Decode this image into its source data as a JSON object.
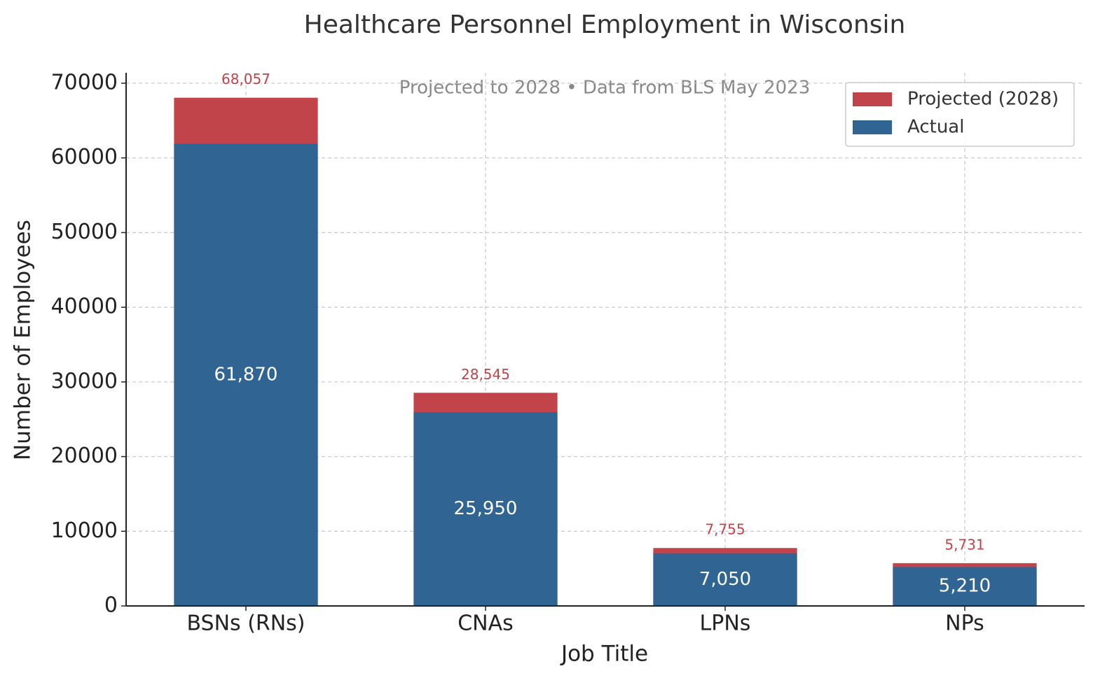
{
  "chart_data": {
    "type": "bar",
    "title": "Healthcare Personnel Employment in Wisconsin",
    "subtitle": "Projected to 2028 • Data from BLS May 2023",
    "xlabel": "Job Title",
    "ylabel": "Number of Employees",
    "categories": [
      "BSNs (RNs)",
      "CNAs",
      "LPNs",
      "NPs"
    ],
    "series": [
      {
        "name": "Projected (2028)",
        "color": "#c0444a",
        "values": [
          68057,
          28545,
          7755,
          5731
        ],
        "value_labels": [
          "68,057",
          "28,545",
          "7,755",
          "5,731"
        ]
      },
      {
        "name": "Actual",
        "color": "#306493",
        "values": [
          61870,
          25950,
          7050,
          5210
        ],
        "value_labels": [
          "61,870",
          "25,950",
          "7,050",
          "5,210"
        ]
      }
    ],
    "ylim": [
      0,
      71400
    ],
    "yticks": [
      0,
      10000,
      20000,
      30000,
      40000,
      50000,
      60000,
      70000
    ],
    "grid": true,
    "legend": "upper right"
  }
}
